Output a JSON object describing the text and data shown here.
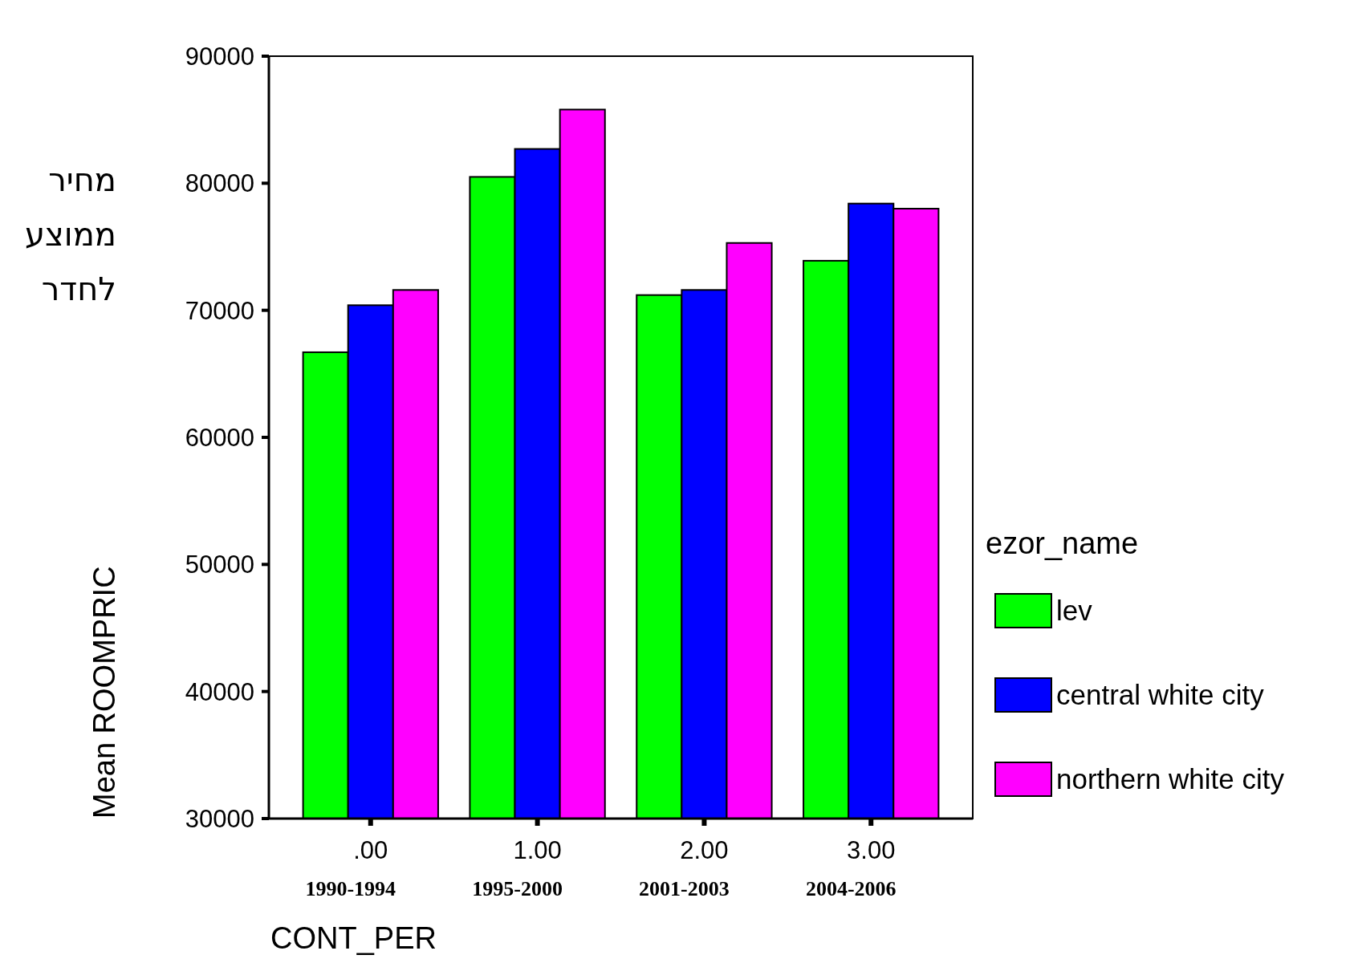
{
  "chart_data": {
    "type": "bar",
    "xlabel": "CONT_PER",
    "ylabel": "Mean ROOMPRIC",
    "legend_title": "ezor_name",
    "categories": [
      ".00",
      "1.00",
      "2.00",
      "3.00"
    ],
    "series": [
      {
        "name": "lev",
        "color": "#00ff00",
        "values": [
          66700,
          80500,
          71200,
          73900
        ]
      },
      {
        "name": "central white city",
        "color": "#0000ff",
        "values": [
          70400,
          82700,
          71600,
          78400
        ]
      },
      {
        "name": "northern white city",
        "color": "#ff00ff",
        "values": [
          71600,
          85800,
          75300,
          78000
        ]
      }
    ],
    "ylim": [
      30000,
      90000
    ],
    "yticks": [
      30000,
      40000,
      50000,
      60000,
      70000,
      80000,
      90000
    ],
    "legend": "right",
    "grid": false,
    "annotations": [
      "1990-1994",
      "1995-2000",
      "2001-2003",
      "2004-2006",
      "מחיר ממוצע לחדר"
    ]
  }
}
